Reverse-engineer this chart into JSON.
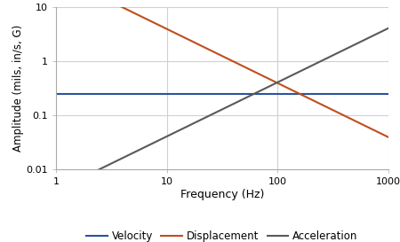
{
  "title": "",
  "xlabel": "Frequency (Hz)",
  "ylabel": "Amplitude (mils, in/s, G)",
  "xmin": 1,
  "xmax": 1000,
  "ymin": 0.01,
  "ymax": 10,
  "velocity_value": 0.25,
  "velocity_color": "#2953a0",
  "displacement_color": "#bf4e1e",
  "acceleration_color": "#595959",
  "velocity_label": "Velocity",
  "displacement_label": "Displacement",
  "acceleration_label": "Acceleration",
  "line_width": 1.5,
  "background_color": "#ffffff",
  "grid_color": "#d0d0d0",
  "legend_fontsize": 8.5,
  "axis_label_fontsize": 8.5,
  "tick_label_fontsize": 8,
  "xlabel_fontsize": 9,
  "ylabel_fontsize": 8.5
}
